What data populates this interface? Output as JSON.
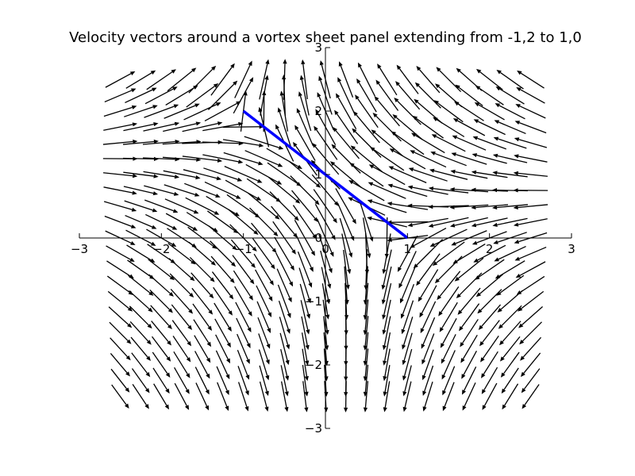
{
  "chart_data": {
    "type": "quiver",
    "title": "Velocity vectors around a vortex sheet panel extending from -1,2 to 1,0",
    "xlabel": "",
    "ylabel": "",
    "xlim": [
      -3,
      3
    ],
    "ylim": [
      -3,
      3
    ],
    "grid": false,
    "axes_through_origin": true,
    "x_ticks": [
      -3,
      -2,
      -1,
      0,
      1,
      2,
      3
    ],
    "x_tick_labels": [
      "−3",
      "−2",
      "−1",
      "0",
      "1",
      "2",
      "3"
    ],
    "y_ticks": [
      -3,
      -2,
      -1,
      0,
      1,
      2,
      3
    ],
    "y_tick_labels": [
      "−3",
      "−2",
      "−1",
      "0",
      "1",
      "2",
      "3"
    ],
    "panel": {
      "start": [
        -1,
        2
      ],
      "end": [
        1,
        0
      ],
      "color": "#0000ff"
    },
    "vector_field": {
      "x_range": [
        -2.5,
        2.5
      ],
      "y_range": [
        -2.5,
        2.5
      ],
      "count_x": 21,
      "count_y": 21,
      "color": "#000000",
      "description_source": "velocity induced by a constant-strength vortex sheet on the panel"
    }
  }
}
